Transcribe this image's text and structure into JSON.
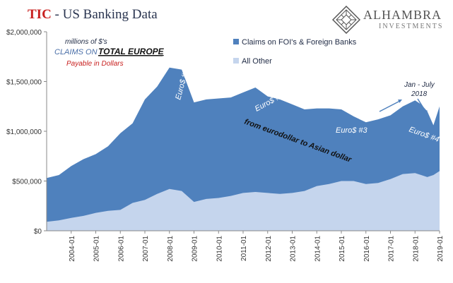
{
  "header": {
    "title_prefix": "TIC",
    "title_rest": " - US Banking Data",
    "brand_name": "ALHAMBRA",
    "brand_sub": "INVESTMENTS"
  },
  "colors": {
    "foi": "#4f81bd",
    "other": "#c5d5ed",
    "arrow": "#4f81bd",
    "accent_red": "#c8201f",
    "text_blue": "#4a6fa8"
  },
  "annotations": {
    "units": "millions of $'s",
    "claims_on": "CLAIMS ON",
    "total_europe": "TOTAL EUROPE",
    "payable": "Payable in Dollars",
    "euro1": "Euro$ #1",
    "euro2": "Euro$ #2",
    "euro3": "Euro$ #3",
    "euro4": "Euro$ #4",
    "eurodollar_asian": "from eurodollar to Asian dollar",
    "jan_july": "Jan - July",
    "year_2018": "2018"
  },
  "chart_data": {
    "type": "area",
    "stacked": true,
    "title": "TIC - US Banking Data",
    "xlabel": "",
    "ylabel": "",
    "x": [
      "2003-01",
      "2003-07",
      "2004-01",
      "2004-07",
      "2005-01",
      "2005-07",
      "2006-01",
      "2006-07",
      "2007-01",
      "2007-07",
      "2008-01",
      "2008-07",
      "2009-01",
      "2009-07",
      "2010-01",
      "2010-07",
      "2011-01",
      "2011-07",
      "2012-01",
      "2012-07",
      "2013-01",
      "2013-07",
      "2014-01",
      "2014-07",
      "2015-01",
      "2015-07",
      "2016-01",
      "2016-07",
      "2017-01",
      "2017-07",
      "2018-01",
      "2018-04",
      "2018-07",
      "2018-10",
      "2019-01"
    ],
    "xlim": [
      "2003-01",
      "2019-01"
    ],
    "xticks": [
      "2004-01",
      "2005-01",
      "2006-01",
      "2007-01",
      "2008-01",
      "2009-01",
      "2010-01",
      "2011-01",
      "2012-01",
      "2013-01",
      "2014-01",
      "2015-01",
      "2016-01",
      "2017-01",
      "2018-01",
      "2019-01"
    ],
    "yticks": [
      "$0",
      "$500,000",
      "$1,000,000",
      "$1,500,000",
      "$2,000,000"
    ],
    "ylim": [
      0,
      2000000
    ],
    "series": [
      {
        "name": "All Other",
        "values": [
          90000,
          105000,
          130000,
          150000,
          180000,
          200000,
          210000,
          280000,
          310000,
          370000,
          420000,
          400000,
          290000,
          320000,
          330000,
          350000,
          380000,
          390000,
          380000,
          370000,
          380000,
          400000,
          450000,
          470000,
          500000,
          500000,
          470000,
          480000,
          520000,
          570000,
          580000,
          560000,
          540000,
          560000,
          600000
        ]
      },
      {
        "name": "Claims on FOI's & Foreign Banks",
        "values": [
          440000,
          455000,
          520000,
          570000,
          590000,
          650000,
          770000,
          800000,
          1010000,
          1080000,
          1220000,
          1220000,
          1000000,
          1000000,
          1000000,
          990000,
          1010000,
          1050000,
          970000,
          950000,
          890000,
          820000,
          780000,
          760000,
          720000,
          650000,
          620000,
          640000,
          640000,
          680000,
          730000,
          710000,
          660000,
          500000,
          650000
        ]
      }
    ],
    "legend": [
      "Claims on FOI's & Foreign Banks",
      "All Other"
    ],
    "legend_position": "top-right",
    "grid": false
  }
}
